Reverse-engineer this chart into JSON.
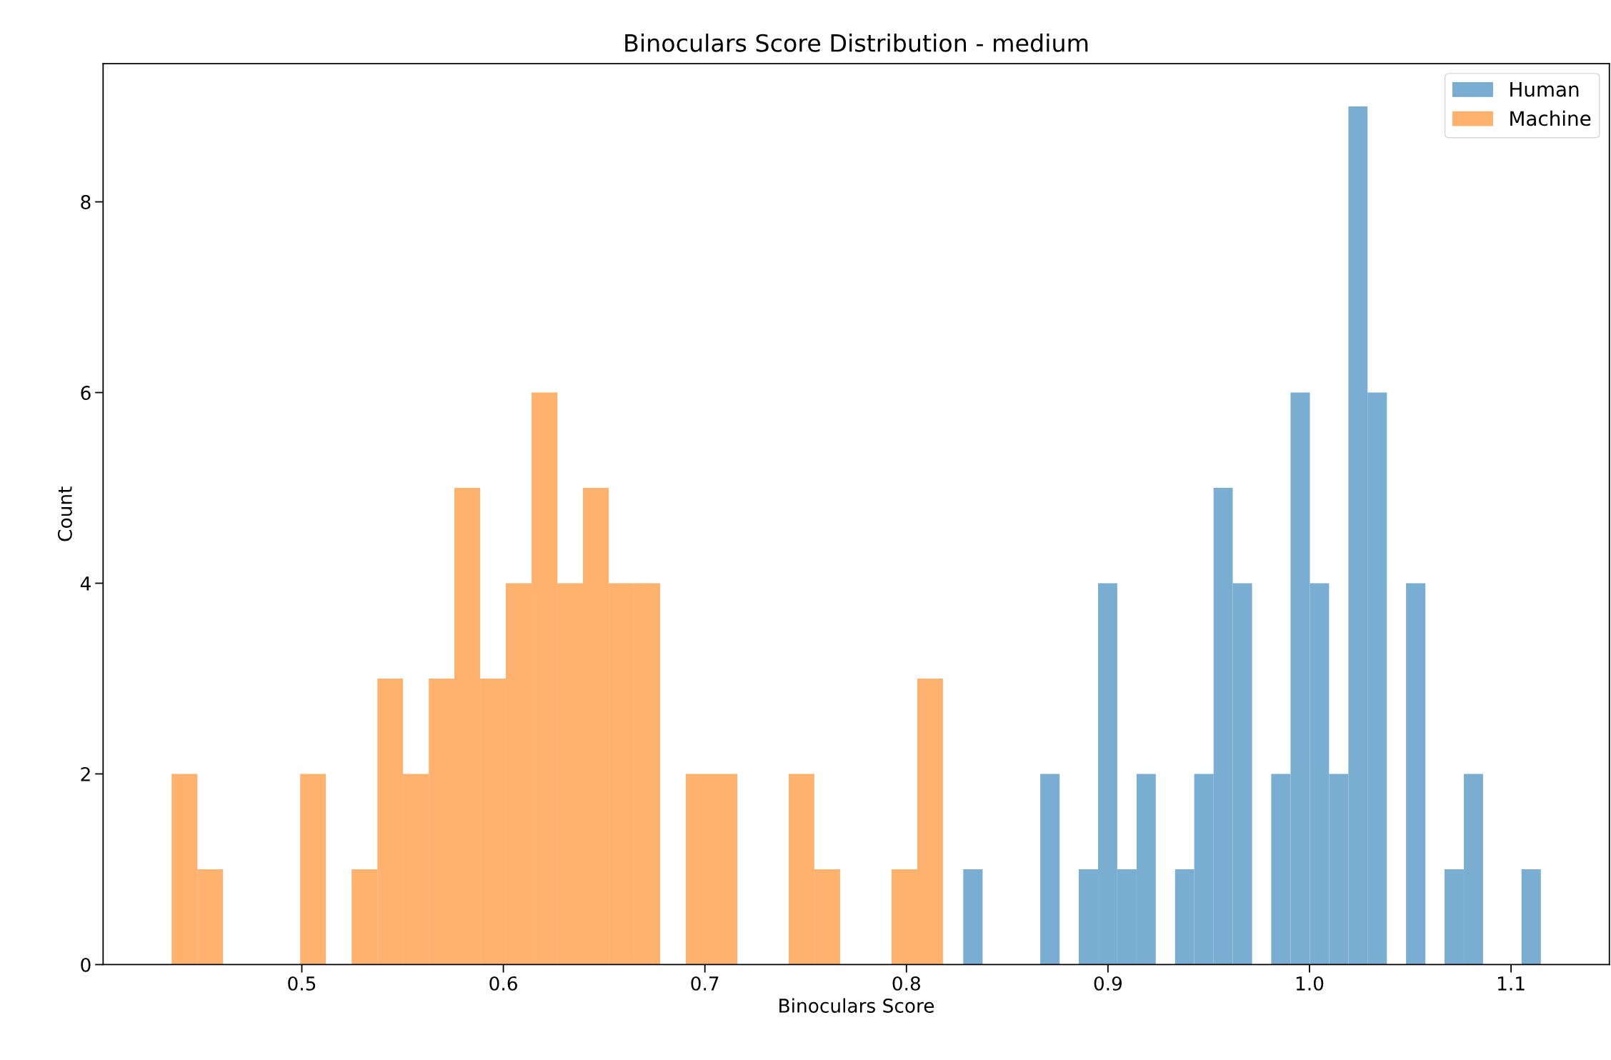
{
  "chart_data": {
    "type": "histogram",
    "title": "Binoculars Score Distribution - medium",
    "xlabel": "Binoculars Score",
    "ylabel": "Count",
    "bins": [
      0.4354,
      0.4482,
      0.4609,
      0.4992,
      0.5119,
      0.5247,
      0.5375,
      0.5502,
      0.563,
      0.5757,
      0.5885,
      0.6012,
      0.614,
      0.6268,
      0.6395,
      0.6523,
      0.665,
      0.6778,
      0.6905,
      0.7033,
      0.7161,
      0.7416,
      0.7543,
      0.7671,
      0.7926,
      0.8054,
      0.8181,
      0.8282,
      0.8378,
      0.8664,
      0.876,
      0.8855,
      0.8951,
      0.9046,
      0.9142,
      0.9237,
      0.9333,
      0.9428,
      0.9524,
      0.9619,
      0.9715,
      0.981,
      0.9906,
      1.0002,
      1.0097,
      1.0193,
      1.0288,
      1.0384,
      1.0479,
      1.0575,
      1.067,
      1.0766,
      1.0861,
      1.1052,
      1.1148
    ],
    "series": [
      {
        "name": "Human",
        "color": "#79add2",
        "values": [
          null,
          null,
          null,
          null,
          null,
          null,
          null,
          null,
          null,
          null,
          null,
          null,
          null,
          null,
          null,
          null,
          null,
          null,
          null,
          null,
          null,
          null,
          null,
          null,
          null,
          null,
          null,
          1,
          0,
          2,
          0,
          1,
          4,
          1,
          2,
          0,
          1,
          2,
          5,
          4,
          0,
          2,
          6,
          4,
          2,
          9,
          6,
          0,
          4,
          0,
          1,
          2,
          0,
          1
        ]
      },
      {
        "name": "Machine",
        "color": "#ffb26e",
        "values": [
          2,
          1,
          0,
          2,
          0,
          1,
          3,
          2,
          3,
          5,
          3,
          4,
          6,
          4,
          5,
          4,
          4,
          0,
          2,
          2,
          0,
          2,
          1,
          0,
          1,
          3,
          null,
          null,
          null,
          null,
          null,
          null,
          null,
          null,
          null,
          null,
          null,
          null,
          null,
          null,
          null,
          null,
          null,
          null,
          null,
          null,
          null,
          null,
          null,
          null,
          null,
          null,
          null,
          null
        ]
      }
    ],
    "xlim": [
      0.4014,
      1.1488
    ],
    "xticks": [
      0.5,
      0.6,
      0.7,
      0.8,
      0.9,
      {
        "value": 1.0,
        "label": "1.0"
      },
      1.1
    ],
    "ylim": [
      0,
      9.45
    ],
    "yticks": [
      0,
      2,
      4,
      6,
      8
    ],
    "grid": false,
    "legend": "top right"
  }
}
